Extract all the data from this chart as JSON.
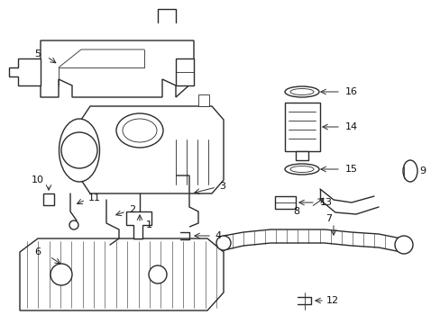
{
  "bg_color": "#ffffff",
  "line_color": "#2a2a2a",
  "label_color": "#111111",
  "figsize": [
    4.89,
    3.6
  ],
  "dpi": 100,
  "xlim": [
    0,
    489
  ],
  "ylim": [
    0,
    360
  ]
}
